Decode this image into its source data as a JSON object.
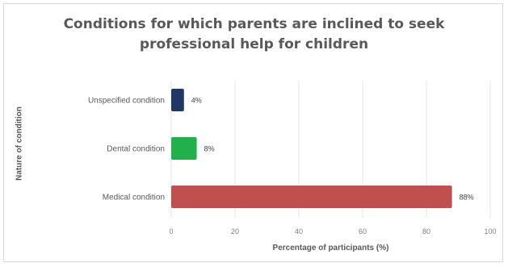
{
  "chart_data": {
    "type": "bar",
    "orientation": "horizontal",
    "title": "Conditions for which parents are inclined to seek\nprofessional help for children",
    "xlabel": "Percentage of participants (%)",
    "ylabel": "Nature of condition",
    "categories": [
      "Unspecified condition",
      "Dental condition",
      "Medical condition"
    ],
    "values": [
      4,
      8,
      88
    ],
    "data_labels": [
      "4%",
      "8%",
      "88%"
    ],
    "bar_colors": [
      "#1f3864",
      "#21b04b",
      "#c0504d"
    ],
    "xlim": [
      0,
      100
    ],
    "xticks": [
      "0",
      "20",
      "40",
      "60",
      "80",
      "100"
    ],
    "grid": "vertical",
    "legend": "none"
  }
}
